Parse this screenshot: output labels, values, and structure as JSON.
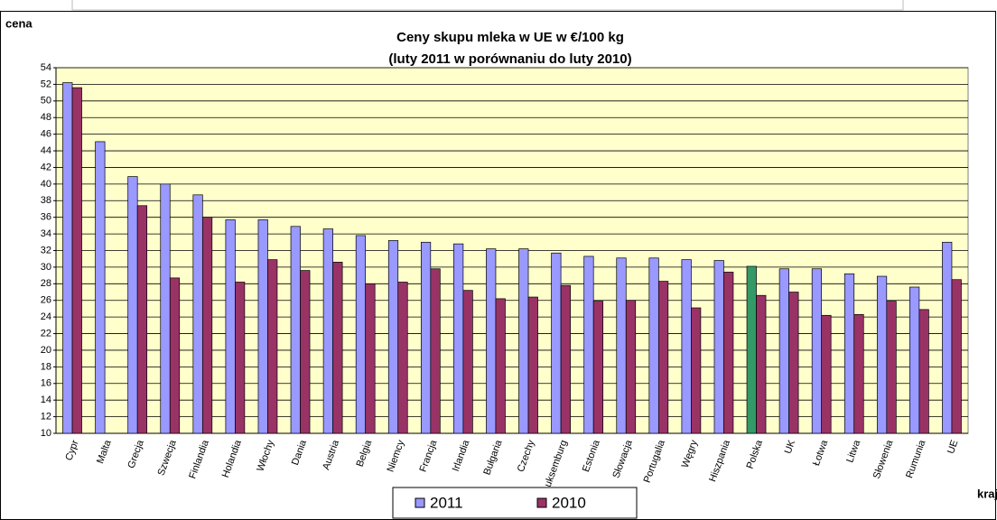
{
  "chart_data": {
    "type": "bar",
    "title": "Ceny skupu mleka w UE w €/100 kg",
    "subtitle": "(luty 2011 w porównaniu do luty 2010)",
    "y_label": "cena",
    "x_label": "kraj",
    "categories": [
      "Cypr",
      "Malta",
      "Grecja",
      "Szwecja",
      "Finlandia",
      "Holandia",
      "Włochy",
      "Dania",
      "Austria",
      "Belgia",
      "Niemcy",
      "Francja",
      "Irlandia",
      "Bułgaria",
      "Czechy",
      "Luksemburg",
      "Estonia",
      "Słowacja",
      "Portugalia",
      "Węgry",
      "Hiszpania",
      "Polska",
      "UK",
      "Łotwa",
      "Litwa",
      "Słowenia",
      "Rumunia",
      "UE"
    ],
    "series": [
      {
        "name": "2011",
        "color": "#9999ff",
        "point_colors": [
          "#9999ff",
          "#9999ff",
          "#9999ff",
          "#9999ff",
          "#9999ff",
          "#9999ff",
          "#9999ff",
          "#9999ff",
          "#9999ff",
          "#9999ff",
          "#9999ff",
          "#9999ff",
          "#9999ff",
          "#9999ff",
          "#9999ff",
          "#9999ff",
          "#9999ff",
          "#9999ff",
          "#9999ff",
          "#9999ff",
          "#9999ff",
          "#339966",
          "#9999ff",
          "#9999ff",
          "#9999ff",
          "#9999ff",
          "#9999ff",
          "#9999ff"
        ],
        "values": [
          52.2,
          45.1,
          40.9,
          40.0,
          38.7,
          35.7,
          35.7,
          34.9,
          34.6,
          33.8,
          33.2,
          33.0,
          32.8,
          32.2,
          32.2,
          31.7,
          31.3,
          31.1,
          31.1,
          30.9,
          30.8,
          30.1,
          29.8,
          29.8,
          29.2,
          28.9,
          27.6,
          33.0
        ]
      },
      {
        "name": "2010",
        "color": "#993366",
        "values": [
          51.6,
          null,
          37.4,
          28.7,
          36.0,
          28.2,
          30.9,
          29.6,
          30.6,
          28.0,
          28.2,
          29.8,
          27.2,
          26.2,
          26.4,
          27.8,
          25.9,
          26.0,
          28.3,
          25.1,
          29.4,
          26.6,
          27.0,
          24.2,
          24.3,
          25.9,
          24.9,
          28.5
        ]
      }
    ],
    "ylim": [
      10,
      54
    ],
    "yticks": [
      10,
      12,
      14,
      16,
      18,
      20,
      22,
      24,
      26,
      28,
      30,
      32,
      34,
      36,
      38,
      40,
      42,
      44,
      46,
      48,
      50,
      52,
      54
    ],
    "grid": true,
    "plot_background": "#ffffcc",
    "legend": "bottom"
  }
}
